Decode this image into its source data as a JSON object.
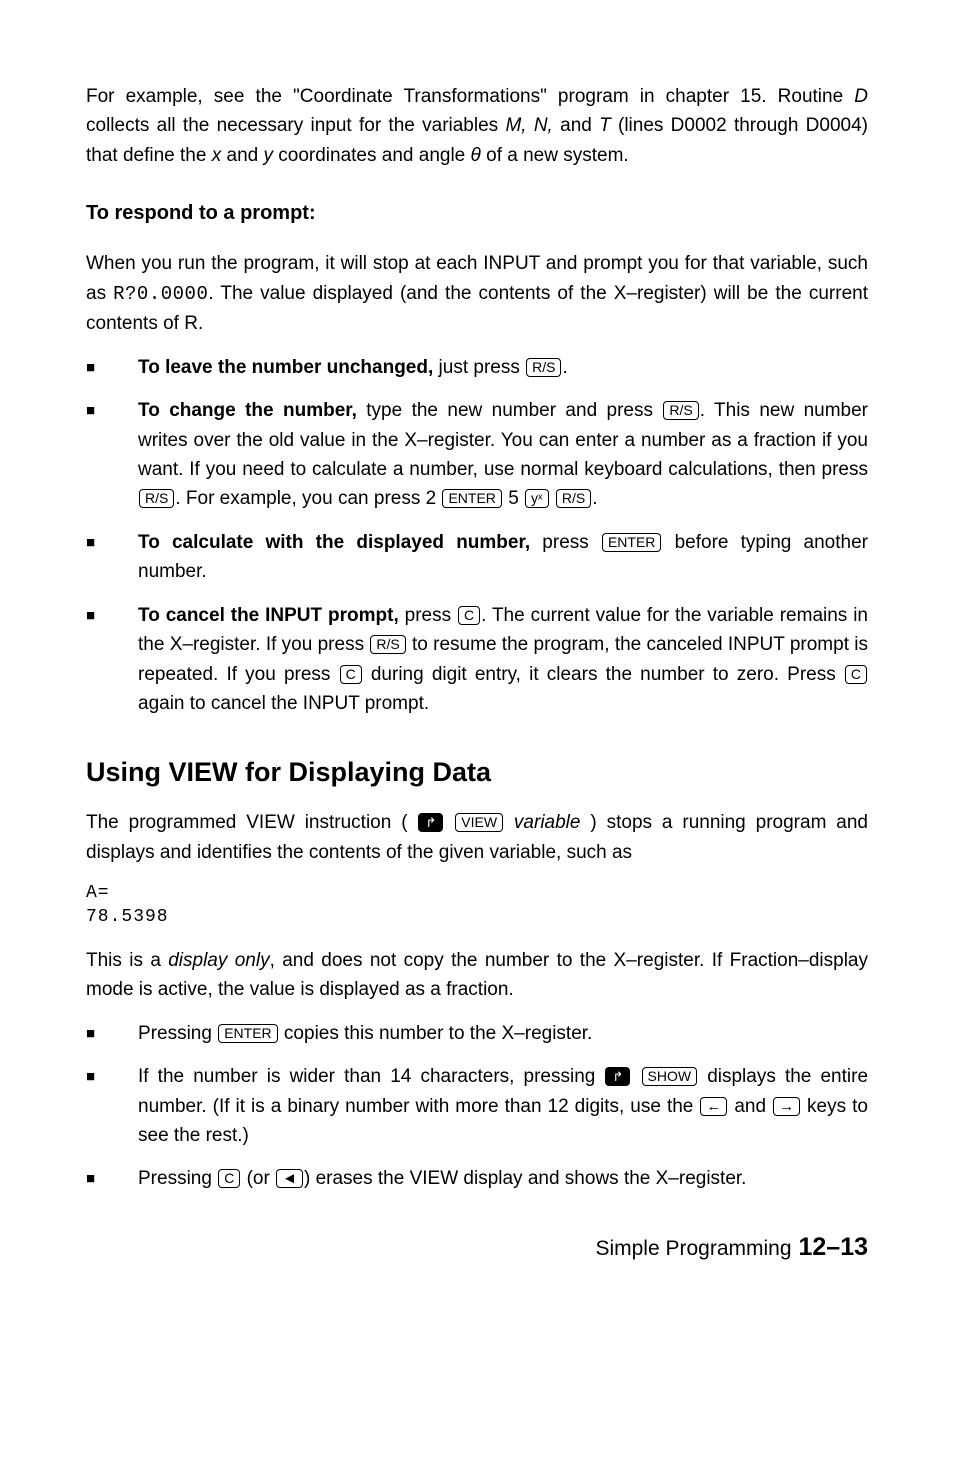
{
  "intro": {
    "p1_a": "For example, see the \"Coordinate Transformations\" program in chapter 15. Routine ",
    "p1_D": "D",
    "p1_b": " collects all the necessary input for the variables ",
    "p1_MN": "M, N,",
    "p1_c": " and ",
    "p1_T": "T",
    "p1_d": " (lines D0002 through D0004) that define the ",
    "p1_x": "x",
    "p1_e": " and ",
    "p1_y": "y",
    "p1_f": " coordinates and angle ",
    "p1_theta": "θ ",
    "p1_g": "of a new system."
  },
  "prompt_heading": "To respond to a prompt:",
  "prompt_intro_a": "When you run the program, it will stop at each INPUT and prompt you for that variable, such as ",
  "prompt_code": "R?0.0000",
  "prompt_intro_b": ". The value displayed (and the contents of the X–register) will be the current contents of R.",
  "b1_lead": "To leave the number unchanged,",
  "b1_rest": " just press ",
  "key_rs": "R/S",
  "period": ".",
  "b2_lead": "To change the number,",
  "b2_a": " type the new number and press ",
  "b2_b": ". This new number writes over the old value in the X–register. You can enter a number as a fraction if you want. If you need to calculate a number, use normal keyboard calculations, then press ",
  "b2_c": ". For example, you can press 2 ",
  "key_enter": "ENTER",
  "b2_d": " 5 ",
  "key_yx": "yˣ",
  "b2_e": " ",
  "b3_lead": "To calculate with the displayed number,",
  "b3_a": " press ",
  "b3_b": " before typing another number.",
  "b4_lead": "To cancel the INPUT prompt,",
  "b4_a": " press ",
  "key_c": "C",
  "b4_b": ". The current value for the variable remains in the X–register. If you press ",
  "b4_c": " to resume the program, the canceled INPUT prompt is repeated. If you press ",
  "b4_d": " during digit entry, it clears the number to zero. Press ",
  "b4_e": " again to cancel the INPUT prompt.",
  "section_heading": "Using VIEW for Displaying Data",
  "view_p_a": "The programmed VIEW instruction ( ",
  "key_shift": "↱",
  "key_view": "VIEW",
  "view_var": " variable",
  "view_p_b": " ) stops a running program and displays and identifies the contents of the given variable, such as",
  "display_1": "A=",
  "display_2": "78.5398",
  "disp_p_a": "This is a ",
  "disp_only": "display only",
  "disp_p_b": ", and does not copy the number to the X–register. If Fraction–display mode is active, the value is displayed as a fraction.",
  "l1_a": "Pressing ",
  "l1_b": " copies this number to the X–register.",
  "l2_a": "If the number is wider than 14 characters, pressing ",
  "key_show": "SHOW",
  "l2_b": " displays the entire number. (If it is a binary number with more than 12 digits, use the ",
  "key_left": "←",
  "l2_c": " and ",
  "key_right": "→",
  "l2_d": " keys to see the rest.)",
  "l3_a": "Pressing ",
  "l3_b": " (or ",
  "key_back": "◄",
  "l3_c": ") erases the VIEW display and shows the X–register.",
  "footer_text": "Simple Programming",
  "footer_page": "  12–13"
}
